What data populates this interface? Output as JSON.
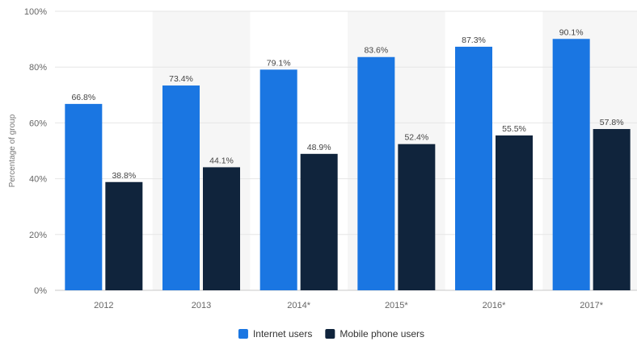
{
  "chart_data": {
    "type": "bar",
    "title": "",
    "xlabel": "",
    "ylabel": "Percentage of group",
    "ylim": [
      0,
      100
    ],
    "y_ticks": [
      0,
      20,
      40,
      60,
      80,
      100
    ],
    "y_tick_labels": [
      "0%",
      "20%",
      "40%",
      "60%",
      "80%",
      "100%"
    ],
    "categories": [
      "2012",
      "2013",
      "2014*",
      "2015*",
      "2016*",
      "2017*"
    ],
    "series": [
      {
        "name": "Internet users",
        "color": "#1a76e2",
        "values": [
          66.8,
          73.4,
          79.1,
          83.6,
          87.3,
          90.1
        ],
        "labels": [
          "66.8%",
          "73.4%",
          "79.1%",
          "83.6%",
          "87.3%",
          "90.1%"
        ]
      },
      {
        "name": "Mobile phone users",
        "color": "#10243c",
        "values": [
          38.8,
          44.1,
          48.9,
          52.4,
          55.5,
          57.8
        ],
        "labels": [
          "38.8%",
          "44.1%",
          "48.9%",
          "52.4%",
          "55.5%",
          "57.8%"
        ]
      }
    ],
    "grid": true,
    "legend_position": "bottom-center",
    "band_color": "#f6f6f6",
    "grid_color": "#e6e6e6"
  }
}
